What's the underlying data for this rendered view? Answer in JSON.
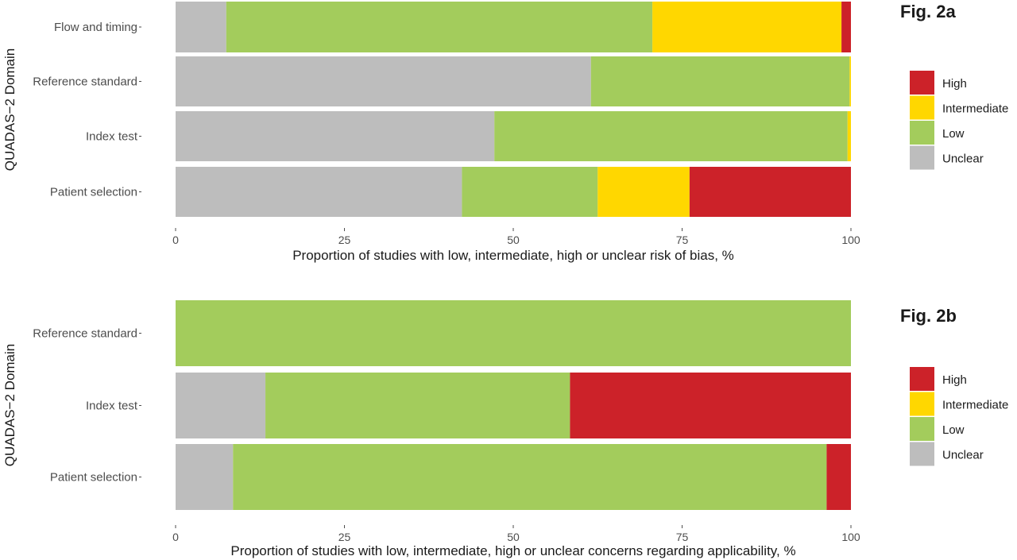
{
  "colors": {
    "High": "#cc2229",
    "Intermediate": "#ffd700",
    "Low": "#a3cc5c",
    "Unclear": "#bdbdbd"
  },
  "chart_data": [
    {
      "type": "bar",
      "orientation": "horizontal",
      "stacked": true,
      "fig_label": "Fig. 2a",
      "xlabel": "Proportion of studies with low, intermediate, high or unclear risk of bias, %",
      "ylabel": "QUADAS−2 Domain",
      "xlim": [
        0,
        100
      ],
      "xticks": [
        "0",
        "25",
        "50",
        "75",
        "100"
      ],
      "categories": [
        "Flow and timing",
        "Reference standard",
        "Index test",
        "Patient selection"
      ],
      "legend": {
        "position": "right",
        "entries": [
          "High",
          "Intermediate",
          "Low",
          "Unclear"
        ]
      },
      "series": [
        {
          "name": "Unclear",
          "values": [
            7.5,
            61.5,
            47.2,
            42.4
          ]
        },
        {
          "name": "Low",
          "values": [
            63.1,
            38.3,
            52.3,
            20.1
          ]
        },
        {
          "name": "Intermediate",
          "values": [
            28.0,
            0.2,
            0.5,
            13.6
          ]
        },
        {
          "name": "High",
          "values": [
            1.4,
            0,
            0,
            23.9
          ]
        }
      ]
    },
    {
      "type": "bar",
      "orientation": "horizontal",
      "stacked": true,
      "fig_label": "Fig. 2b",
      "xlabel": "Proportion of studies with low, intermediate, high or unclear concerns regarding applicability, %",
      "ylabel": "QUADAS−2 Domain",
      "xlim": [
        0,
        100
      ],
      "xticks": [
        "0",
        "25",
        "50",
        "75",
        "100"
      ],
      "categories": [
        "Reference standard",
        "Index test",
        "Patient selection"
      ],
      "legend": {
        "position": "right",
        "entries": [
          "High",
          "Intermediate",
          "Low",
          "Unclear"
        ]
      },
      "series": [
        {
          "name": "Unclear",
          "values": [
            0,
            13.3,
            8.5
          ]
        },
        {
          "name": "Low",
          "values": [
            100,
            45.1,
            87.9
          ]
        },
        {
          "name": "Intermediate",
          "values": [
            0,
            0,
            0
          ]
        },
        {
          "name": "High",
          "values": [
            0,
            41.6,
            3.6
          ]
        }
      ]
    }
  ]
}
